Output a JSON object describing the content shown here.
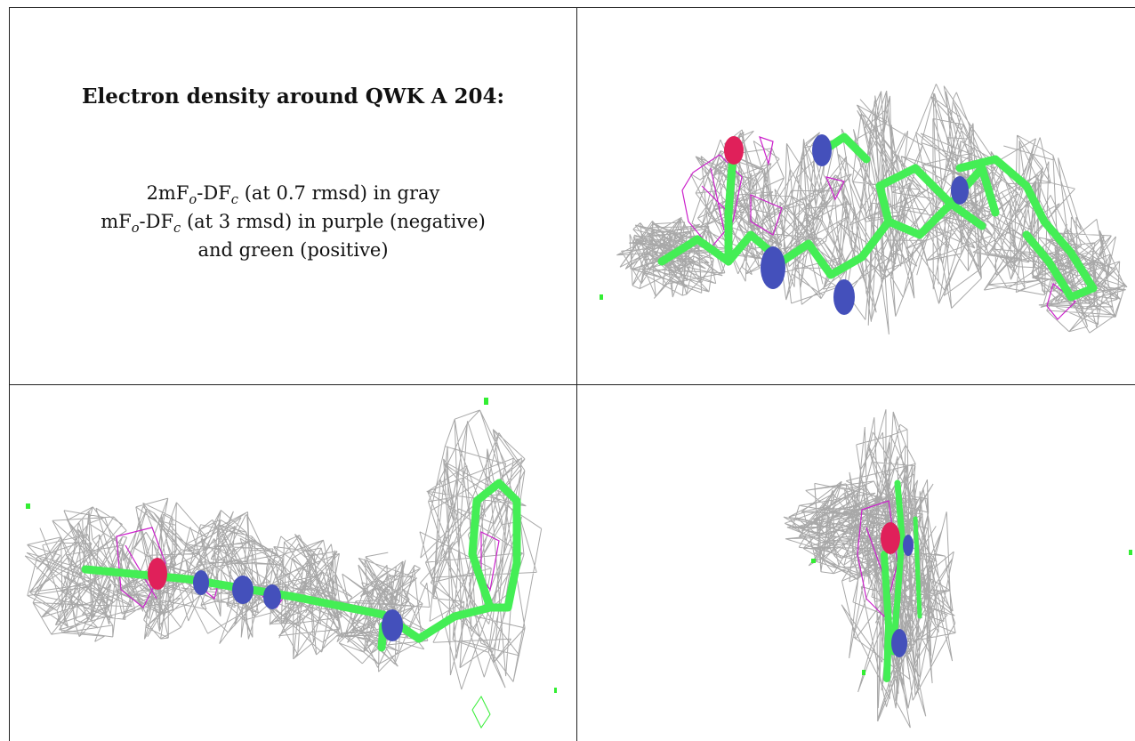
{
  "caption": {
    "title": "Electron density around QWK A 204:",
    "line1": {
      "a": "2mF",
      "s1": "o",
      "b": "-DF",
      "s2": "c",
      "rest": " (at 0.7 rmsd) in gray"
    },
    "line2": {
      "a": "mF",
      "s1": "o",
      "b": "-DF",
      "s2": "c",
      "rest": " (at 3 rmsd) in purple (negative)"
    },
    "line3": "and green (positive)"
  },
  "colors": {
    "mesh_gray": "#9a9a9a",
    "negative_purple": "#cc22cc",
    "positive_green": "#33ee33",
    "carbon_green": "#44ee55",
    "nitrogen_blue": "#4450bb",
    "oxygen_red": "#e0205a",
    "grid_lines": "#222222"
  },
  "panels": [
    {
      "name": "view-top-right"
    },
    {
      "name": "view-bottom-left"
    },
    {
      "name": "view-bottom-right"
    }
  ]
}
